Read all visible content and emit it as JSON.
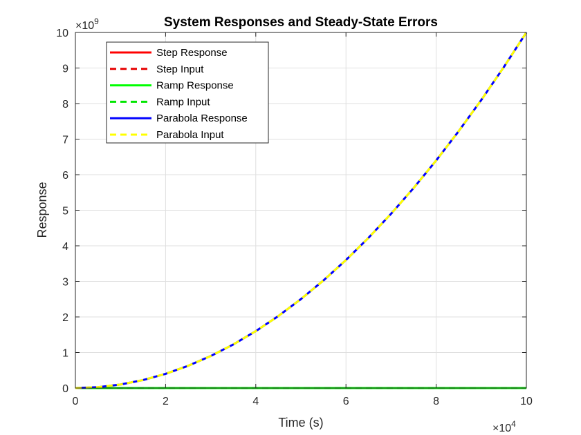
{
  "chart_data": {
    "type": "line",
    "title": "System Responses and Steady-State Errors",
    "xlabel": "Time (s)",
    "ylabel": "Response",
    "xlim": [
      0,
      100000
    ],
    "ylim": [
      0,
      10000000000
    ],
    "x_ticks": [
      "0",
      "2",
      "4",
      "6",
      "8",
      "10"
    ],
    "y_ticks": [
      "0",
      "1",
      "2",
      "3",
      "4",
      "5",
      "6",
      "7",
      "8",
      "9",
      "10"
    ],
    "x_exponent_base": "×10",
    "x_exponent_power": "4",
    "y_exponent_base": "×10",
    "y_exponent_power": "9",
    "grid": true,
    "legend_position": "top-left",
    "x": [
      0,
      5000,
      10000,
      15000,
      20000,
      25000,
      30000,
      35000,
      40000,
      45000,
      50000,
      55000,
      60000,
      65000,
      70000,
      75000,
      80000,
      85000,
      90000,
      95000,
      100000
    ],
    "series": [
      {
        "name": "Step Response",
        "color": "#ff0000",
        "style": "solid",
        "values": [
          0,
          1,
          1,
          1,
          1,
          1,
          1,
          1,
          1,
          1,
          1,
          1,
          1,
          1,
          1,
          1,
          1,
          1,
          1,
          1,
          1
        ]
      },
      {
        "name": "Step Input",
        "color": "#e60000",
        "style": "dashed",
        "values": [
          1,
          1,
          1,
          1,
          1,
          1,
          1,
          1,
          1,
          1,
          1,
          1,
          1,
          1,
          1,
          1,
          1,
          1,
          1,
          1,
          1
        ]
      },
      {
        "name": "Ramp Response",
        "color": "#00ff00",
        "style": "solid",
        "values": [
          0,
          5000,
          10000,
          15000,
          20000,
          25000,
          30000,
          35000,
          40000,
          45000,
          50000,
          55000,
          60000,
          65000,
          70000,
          75000,
          80000,
          85000,
          90000,
          95000,
          100000
        ]
      },
      {
        "name": "Ramp Input",
        "color": "#00e600",
        "style": "dashed",
        "values": [
          0,
          5000,
          10000,
          15000,
          20000,
          25000,
          30000,
          35000,
          40000,
          45000,
          50000,
          55000,
          60000,
          65000,
          70000,
          75000,
          80000,
          85000,
          90000,
          95000,
          100000
        ]
      },
      {
        "name": "Parabola Response",
        "color": "#0000ff",
        "style": "solid",
        "values": [
          0,
          25000000,
          100000000,
          225000000,
          400000000,
          625000000,
          900000000,
          1225000000,
          1600000000,
          2025000000,
          2500000000,
          3025000000,
          3600000000,
          4225000000,
          4900000000,
          5625000000,
          6400000000,
          7225000000,
          8100000000,
          9025000000,
          10000000000
        ]
      },
      {
        "name": "Parabola Input",
        "color": "#ffff00",
        "style": "dashed",
        "values": [
          0,
          25000000,
          100000000,
          225000000,
          400000000,
          625000000,
          900000000,
          1225000000,
          1600000000,
          2025000000,
          2500000000,
          3025000000,
          3600000000,
          4225000000,
          4900000000,
          5625000000,
          6400000000,
          7225000000,
          8100000000,
          9025000000,
          10000000000
        ]
      }
    ]
  }
}
